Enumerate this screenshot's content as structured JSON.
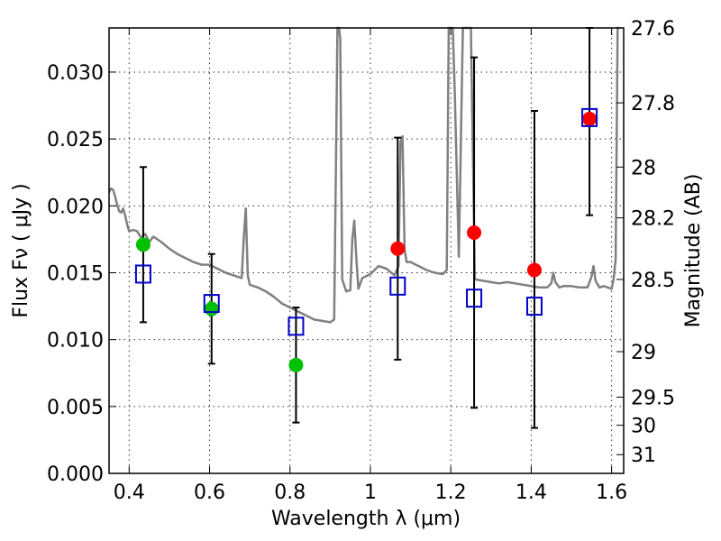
{
  "chart_data": {
    "type": "scatter",
    "xlabel": "Wavelength  λ (μm)",
    "ylabel": "Flux  Fν  ( μJy )",
    "y2label": "Magnitude (AB)",
    "xlim": [
      0.35,
      1.63
    ],
    "ylim": [
      0,
      0.0333
    ],
    "grid": true,
    "x_ticks": [
      {
        "value": 0.4,
        "label": "0.4"
      },
      {
        "value": 0.6,
        "label": "0.6"
      },
      {
        "value": 0.8,
        "label": "0.8"
      },
      {
        "value": 1.0,
        "label": "1"
      },
      {
        "value": 1.2,
        "label": "1.2"
      },
      {
        "value": 1.4,
        "label": "1.4"
      },
      {
        "value": 1.6,
        "label": "1.6"
      }
    ],
    "y_ticks": [
      {
        "value": 0.0,
        "label": "0.000"
      },
      {
        "value": 0.005,
        "label": "0.005"
      },
      {
        "value": 0.01,
        "label": "0.010"
      },
      {
        "value": 0.015,
        "label": "0.015"
      },
      {
        "value": 0.02,
        "label": "0.020"
      },
      {
        "value": 0.025,
        "label": "0.025"
      },
      {
        "value": 0.03,
        "label": "0.030"
      }
    ],
    "y2_ticks": [
      {
        "flux": 0.0333,
        "label": "27.6"
      },
      {
        "flux": 0.0277,
        "label": "27.8"
      },
      {
        "flux": 0.0229,
        "label": "28"
      },
      {
        "flux": 0.0191,
        "label": "28.2"
      },
      {
        "flux": 0.0145,
        "label": "28.5"
      },
      {
        "flux": 0.0091,
        "label": "29"
      },
      {
        "flux": 0.0057,
        "label": "29.5"
      },
      {
        "flux": 0.0036,
        "label": "30"
      },
      {
        "flux": 0.0014,
        "label": "31"
      }
    ],
    "series": [
      {
        "type": "points",
        "color": "#00c000",
        "marker": "circle",
        "x": [
          0.435,
          0.605,
          0.815
        ],
        "y": [
          0.0171,
          0.0123,
          0.0081
        ]
      },
      {
        "type": "points",
        "color": "#ff0000",
        "marker": "circle",
        "x": [
          1.068,
          1.258,
          1.408,
          1.545
        ],
        "y": [
          0.0168,
          0.018,
          0.0152,
          0.0265
        ]
      },
      {
        "type": "points-with-errorbars",
        "color": "#0000cc",
        "marker": "open-square",
        "points": [
          {
            "x": 0.435,
            "y": 0.0149,
            "ylo": 0.0113,
            "yhi": 0.0229
          },
          {
            "x": 0.605,
            "y": 0.0127,
            "ylo": 0.0082,
            "yhi": 0.0164
          },
          {
            "x": 0.815,
            "y": 0.011,
            "ylo": 0.0038,
            "yhi": 0.0124
          },
          {
            "x": 1.068,
            "y": 0.014,
            "ylo": 0.0085,
            "yhi": 0.0251
          },
          {
            "x": 1.258,
            "y": 0.0131,
            "ylo": 0.0049,
            "yhi": 0.0311
          },
          {
            "x": 1.408,
            "y": 0.0125,
            "ylo": 0.0034,
            "yhi": 0.0271
          },
          {
            "x": 1.545,
            "y": 0.0266,
            "ylo": 0.0193,
            "yhi": 0.0333
          }
        ]
      },
      {
        "type": "line",
        "color": "#808080",
        "x": [
          0.35,
          0.355,
          0.36,
          0.365,
          0.37,
          0.375,
          0.38,
          0.385,
          0.39,
          0.395,
          0.4,
          0.41,
          0.42,
          0.43,
          0.44,
          0.45,
          0.46,
          0.48,
          0.5,
          0.52,
          0.54,
          0.56,
          0.58,
          0.6,
          0.62,
          0.64,
          0.66,
          0.68,
          0.685,
          0.69,
          0.695,
          0.7,
          0.72,
          0.74,
          0.76,
          0.78,
          0.8,
          0.82,
          0.84,
          0.86,
          0.88,
          0.9,
          0.91,
          0.915,
          0.918,
          0.92,
          0.922,
          0.925,
          0.93,
          0.94,
          0.95,
          0.955,
          0.96,
          0.965,
          0.97,
          0.98,
          1.0,
          1.02,
          1.04,
          1.06,
          1.07,
          1.075,
          1.08,
          1.085,
          1.09,
          1.1,
          1.12,
          1.14,
          1.16,
          1.18,
          1.19,
          1.195,
          1.2,
          1.205,
          1.21,
          1.22,
          1.23,
          1.24,
          1.25,
          1.26,
          1.28,
          1.3,
          1.32,
          1.34,
          1.36,
          1.38,
          1.4,
          1.42,
          1.44,
          1.45,
          1.455,
          1.46,
          1.47,
          1.48,
          1.5,
          1.52,
          1.54,
          1.55,
          1.555,
          1.56,
          1.57,
          1.58,
          1.59,
          1.6,
          1.605,
          1.61,
          1.615,
          1.62
        ],
        "y": [
          0.021,
          0.0213,
          0.0212,
          0.0207,
          0.0201,
          0.0196,
          0.0195,
          0.0198,
          0.0193,
          0.0186,
          0.0181,
          0.0182,
          0.0181,
          0.0176,
          0.0179,
          0.0173,
          0.0177,
          0.0173,
          0.0168,
          0.0164,
          0.0161,
          0.0158,
          0.0156,
          0.0156,
          0.0153,
          0.015,
          0.0148,
          0.0146,
          0.0175,
          0.0198,
          0.0148,
          0.0141,
          0.0139,
          0.0136,
          0.0132,
          0.0127,
          0.0124,
          0.0121,
          0.0118,
          0.0115,
          0.0114,
          0.0113,
          0.0115,
          0.0245,
          0.0333,
          0.0333,
          0.0333,
          0.0325,
          0.0145,
          0.0136,
          0.0137,
          0.0175,
          0.0189,
          0.0162,
          0.0138,
          0.0146,
          0.0149,
          0.0155,
          0.0153,
          0.0148,
          0.0155,
          0.0248,
          0.0252,
          0.0168,
          0.0158,
          0.0158,
          0.0155,
          0.0152,
          0.015,
          0.0149,
          0.0152,
          0.0333,
          0.0333,
          0.0333,
          0.0285,
          0.0162,
          0.0333,
          0.0333,
          0.0333,
          0.0145,
          0.0144,
          0.0143,
          0.0142,
          0.0143,
          0.0142,
          0.0141,
          0.014,
          0.0139,
          0.0139,
          0.0142,
          0.015,
          0.0143,
          0.0139,
          0.014,
          0.014,
          0.0139,
          0.0139,
          0.0147,
          0.0155,
          0.0144,
          0.0139,
          0.014,
          0.0139,
          0.0138,
          0.0145,
          0.016,
          0.0333,
          0.0333
        ]
      }
    ]
  }
}
